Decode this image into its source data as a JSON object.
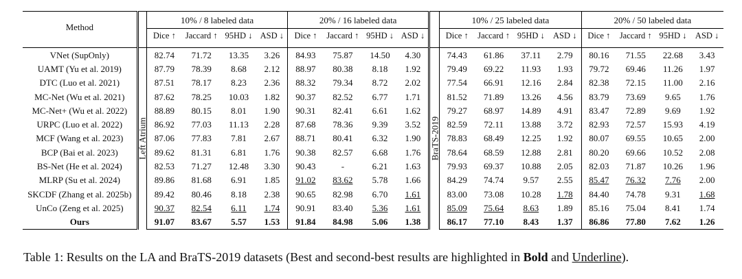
{
  "table": {
    "method_header": "Method",
    "datasets": [
      "Left Atrium",
      "BraTS-2019"
    ],
    "groups": [
      "10% / 8 labeled data",
      "20% / 16 labeled data",
      "10% / 25 labeled data",
      "20% / 50 labeled data"
    ],
    "metrics": [
      "Dice ↑",
      "Jaccard ↑",
      "95HD ↓",
      "ASD ↓"
    ],
    "rows": [
      {
        "method": "VNet (SupOnly)",
        "values": [
          "82.74",
          "71.72",
          "13.35",
          "3.26",
          "84.93",
          "75.87",
          "14.50",
          "4.30",
          "74.43",
          "61.86",
          "37.11",
          "2.79",
          "80.16",
          "71.55",
          "22.68",
          "3.43"
        ],
        "styles": [
          "",
          "",
          "",
          "",
          "",
          "",
          "",
          "",
          "",
          "",
          "",
          "",
          "",
          "",
          "",
          ""
        ]
      },
      {
        "method": "UAMT (Yu et al. 2019)",
        "values": [
          "87.79",
          "78.39",
          "8.68",
          "2.12",
          "88.97",
          "80.38",
          "8.18",
          "1.92",
          "79.49",
          "69.22",
          "11.93",
          "1.93",
          "79.72",
          "69.46",
          "11.26",
          "1.97"
        ],
        "styles": [
          "",
          "",
          "",
          "",
          "",
          "",
          "",
          "",
          "",
          "",
          "",
          "",
          "",
          "",
          "",
          ""
        ]
      },
      {
        "method": "DTC (Luo et al. 2021)",
        "values": [
          "87.51",
          "78.17",
          "8.23",
          "2.36",
          "88.32",
          "79.34",
          "8.72",
          "2.02",
          "77.54",
          "66.91",
          "12.16",
          "2.84",
          "82.38",
          "72.15",
          "11.00",
          "2.16"
        ],
        "styles": [
          "",
          "",
          "",
          "",
          "",
          "",
          "",
          "",
          "",
          "",
          "",
          "",
          "",
          "",
          "",
          ""
        ]
      },
      {
        "method": "MC-Net (Wu et al. 2021)",
        "values": [
          "87.62",
          "78.25",
          "10.03",
          "1.82",
          "90.37",
          "82.52",
          "6.77",
          "1.71",
          "81.52",
          "71.89",
          "13.26",
          "4.56",
          "83.79",
          "73.69",
          "9.65",
          "1.76"
        ],
        "styles": [
          "",
          "",
          "",
          "",
          "",
          "",
          "",
          "",
          "",
          "",
          "",
          "",
          "",
          "",
          "",
          ""
        ]
      },
      {
        "method": "MC-Net+ (Wu et al. 2022)",
        "values": [
          "88.89",
          "80.15",
          "8.01",
          "1.90",
          "90.31",
          "82.41",
          "6.61",
          "1.62",
          "79.27",
          "68.97",
          "14.89",
          "4.91",
          "83.47",
          "72.89",
          "9.69",
          "1.92"
        ],
        "styles": [
          "",
          "",
          "",
          "",
          "",
          "",
          "",
          "",
          "",
          "",
          "",
          "",
          "",
          "",
          "",
          ""
        ]
      },
      {
        "method": "URPC (Luo et al. 2022)",
        "values": [
          "86.92",
          "77.03",
          "11.13",
          "2.28",
          "87.68",
          "78.36",
          "9.39",
          "3.52",
          "82.59",
          "72.11",
          "13.88",
          "3.72",
          "82.93",
          "72.57",
          "15.93",
          "4.19"
        ],
        "styles": [
          "",
          "",
          "",
          "",
          "",
          "",
          "",
          "",
          "",
          "",
          "",
          "",
          "",
          "",
          "",
          ""
        ]
      },
      {
        "method": "MCF (Wang et al. 2023)",
        "values": [
          "87.06",
          "77.83",
          "7.81",
          "2.67",
          "88.71",
          "80.41",
          "6.32",
          "1.90",
          "78.83",
          "68.49",
          "12.25",
          "1.92",
          "80.07",
          "69.55",
          "10.65",
          "2.00"
        ],
        "styles": [
          "",
          "",
          "",
          "",
          "",
          "",
          "",
          "",
          "",
          "",
          "",
          "",
          "",
          "",
          "",
          ""
        ]
      },
      {
        "method": "BCP (Bai et al. 2023)",
        "values": [
          "89.62",
          "81.31",
          "6.81",
          "1.76",
          "90.38",
          "82.57",
          "6.68",
          "1.76",
          "78.64",
          "68.59",
          "12.88",
          "2.81",
          "80.20",
          "69.66",
          "10.52",
          "2.08"
        ],
        "styles": [
          "",
          "",
          "",
          "",
          "",
          "",
          "",
          "",
          "",
          "",
          "",
          "",
          "",
          "",
          "",
          ""
        ]
      },
      {
        "method": "BS-Net (He et al. 2024)",
        "values": [
          "82.53",
          "71.27",
          "12.48",
          "3.30",
          "90.43",
          "-",
          "6.21",
          "1.63",
          "79.93",
          "69.37",
          "10.88",
          "2.05",
          "82.03",
          "71.87",
          "10.26",
          "1.96"
        ],
        "styles": [
          "",
          "",
          "",
          "",
          "",
          "",
          "",
          "",
          "",
          "",
          "",
          "",
          "",
          "",
          "",
          ""
        ]
      },
      {
        "method": "MLRP (Su et al. 2024)",
        "values": [
          "89.86",
          "81.68",
          "6.91",
          "1.85",
          "91.02",
          "83.62",
          "5.78",
          "1.66",
          "84.29",
          "74.74",
          "9.57",
          "2.55",
          "85.47",
          "76.32",
          "7.76",
          "2.00"
        ],
        "styles": [
          "",
          "",
          "",
          "",
          "u",
          "u",
          "",
          "",
          "",
          "",
          "",
          "",
          "u",
          "u",
          "u",
          ""
        ]
      },
      {
        "method": "SKCDF (Zhang et al. 2025b)",
        "values": [
          "89.42",
          "80.46",
          "8.18",
          "2.38",
          "90.65",
          "82.98",
          "6.70",
          "1.61",
          "83.00",
          "73.08",
          "10.28",
          "1.78",
          "84.40",
          "74.78",
          "9.31",
          "1.68"
        ],
        "styles": [
          "",
          "",
          "",
          "",
          "",
          "",
          "",
          "u",
          "",
          "",
          "",
          "u",
          "",
          "",
          "",
          "u"
        ]
      },
      {
        "method": "UnCo (Zeng et al. 2025)",
        "values": [
          "90.37",
          "82.54",
          "6.11",
          "1.74",
          "90.91",
          "83.40",
          "5.36",
          "1.61",
          "85.09",
          "75.64",
          "8.63",
          "1.89",
          "85.16",
          "75.04",
          "8.41",
          "1.74"
        ],
        "styles": [
          "u",
          "u",
          "u",
          "u",
          "",
          "",
          "u",
          "u",
          "u",
          "u",
          "u",
          "",
          "",
          "",
          "",
          ""
        ]
      },
      {
        "method": "Ours",
        "values": [
          "91.07",
          "83.67",
          "5.57",
          "1.53",
          "91.84",
          "84.98",
          "5.06",
          "1.38",
          "86.17",
          "77.10",
          "8.43",
          "1.37",
          "86.86",
          "77.80",
          "7.62",
          "1.26"
        ],
        "styles": [
          "b",
          "b",
          "b",
          "b",
          "b",
          "b",
          "b",
          "b",
          "b",
          "b",
          "b",
          "b",
          "b",
          "b",
          "b",
          "b"
        ],
        "bold_method": true
      }
    ]
  },
  "caption": {
    "prefix": "Table 1: Results on the LA and BraTS-2019 datasets (Best and second-best results are highlighted in ",
    "bold_word": "Bold",
    "middle": " and ",
    "underline_word": "Underline",
    "suffix": ")."
  }
}
